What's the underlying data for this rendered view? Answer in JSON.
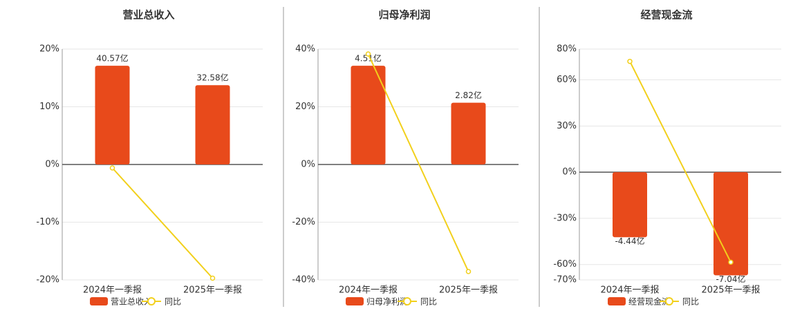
{
  "chart_data": [
    {
      "type": "bar",
      "title": "营业总收入",
      "categories": [
        "2024年一季报",
        "2025年一季报"
      ],
      "ylim": [
        -20,
        20
      ],
      "yticks": [
        {
          "value": 20,
          "label": "20%"
        },
        {
          "value": 10,
          "label": "10%"
        },
        {
          "value": 0,
          "label": "0%"
        },
        {
          "value": -10,
          "label": "-10%"
        },
        {
          "value": -20,
          "label": "-20%"
        }
      ],
      "y2lim": [
        -47.4,
        47.4
      ],
      "grid": true,
      "series": [
        {
          "name": "营业总收入",
          "type": "bar",
          "axis": "y2",
          "color": "#e84a1b",
          "values": [
            40.57,
            32.58
          ],
          "value_labels": [
            "40.57亿",
            "32.58亿"
          ]
        },
        {
          "name": "同比",
          "type": "line",
          "color": "#f2d01c",
          "values": [
            -0.6,
            -19.7
          ]
        }
      ]
    },
    {
      "type": "bar",
      "title": "归母净利润",
      "categories": [
        "2024年一季报",
        "2025年一季报"
      ],
      "ylim": [
        -40,
        40
      ],
      "yticks": [
        {
          "value": 40,
          "label": "40%"
        },
        {
          "value": 20,
          "label": "20%"
        },
        {
          "value": 0,
          "label": "0%"
        },
        {
          "value": -20,
          "label": "-20%"
        },
        {
          "value": -40,
          "label": "-40%"
        }
      ],
      "y2lim": [
        -5.27,
        5.27
      ],
      "grid": true,
      "series": [
        {
          "name": "归母净利润",
          "type": "bar",
          "axis": "y2",
          "color": "#e84a1b",
          "values": [
            4.51,
            2.82
          ],
          "value_labels": [
            "4.51亿",
            "2.82亿"
          ]
        },
        {
          "name": "同比",
          "type": "line",
          "color": "#f2d01c",
          "values": [
            38.3,
            -37.1
          ]
        }
      ]
    },
    {
      "type": "bar",
      "title": "经营现金流",
      "categories": [
        "2024年一季报",
        "2025年一季报"
      ],
      "ylim": [
        -70,
        80
      ],
      "yticks": [
        {
          "value": 80,
          "label": "80%"
        },
        {
          "value": 60,
          "label": "60%"
        },
        {
          "value": 30,
          "label": "30%"
        },
        {
          "value": 0,
          "label": "0%"
        },
        {
          "value": -30,
          "label": "-30%"
        },
        {
          "value": -60,
          "label": "-60%"
        },
        {
          "value": -70,
          "label": "-70%"
        }
      ],
      "y2lim": [
        -7.35,
        8.4
      ],
      "grid": true,
      "series": [
        {
          "name": "经营现金流",
          "type": "bar",
          "axis": "y2",
          "color": "#e84a1b",
          "values": [
            -4.44,
            -7.04
          ],
          "value_labels": [
            "-4.44亿",
            "-7.04亿"
          ]
        },
        {
          "name": "同比",
          "type": "line",
          "color": "#f2d01c",
          "values": [
            72,
            -58.5
          ]
        }
      ]
    }
  ]
}
